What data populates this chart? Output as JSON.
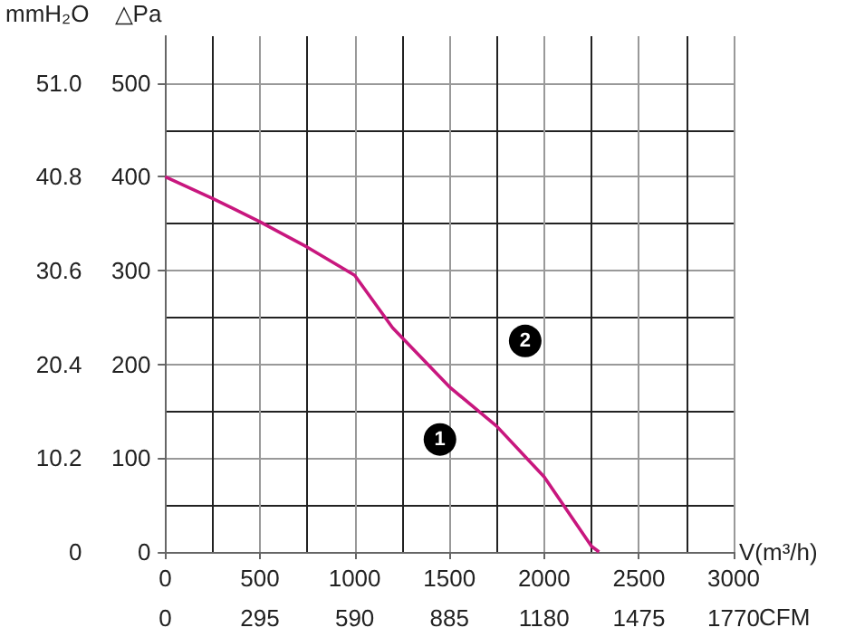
{
  "chart_data": {
    "type": "line",
    "xlabel": "V(m³/h)",
    "x2label": "CFM",
    "ylabel": "△Pa",
    "y2label": "mmH₂O",
    "x": [
      0,
      250,
      500,
      750,
      1000,
      1200,
      1500,
      1750,
      2000,
      2250,
      2290
    ],
    "series": [
      {
        "color": "#c8177e",
        "values": [
          400,
          377,
          352,
          325,
          295,
          239,
          176,
          134,
          80,
          6,
          0
        ]
      }
    ],
    "xlim": [
      0,
      3000
    ],
    "xticks": [
      0,
      500,
      1000,
      1500,
      2000,
      2500,
      3000
    ],
    "x2lim": [
      0,
      1770
    ],
    "x2ticks": [
      0,
      295,
      590,
      885,
      1180,
      1475,
      1770
    ],
    "ylim": [
      0,
      550
    ],
    "yticks": [
      0,
      100,
      200,
      300,
      400,
      500
    ],
    "y2lim": [
      0,
      56.1
    ],
    "y2ticks": [
      0,
      10.2,
      20.4,
      30.6,
      40.8,
      {
        "value": 51,
        "label": "51.0"
      }
    ],
    "annotations": [
      {
        "text": "1",
        "x": 1450,
        "y": 120
      },
      {
        "text": "2",
        "x": 1900,
        "y": 225
      }
    ],
    "grid": true,
    "marker": "none",
    "line_style": "solid"
  }
}
